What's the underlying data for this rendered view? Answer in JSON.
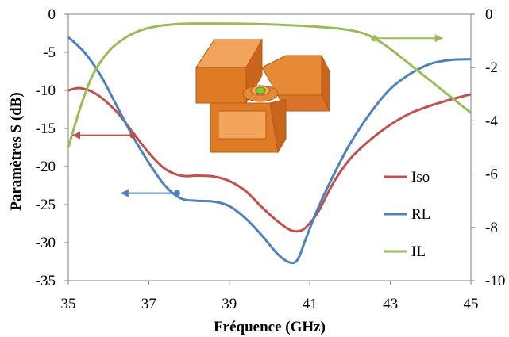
{
  "chart_data": {
    "type": "line",
    "xlabel": "Fréquence (GHz)",
    "ylabel": "Paramètres S (dB)",
    "xlim": [
      35,
      45
    ],
    "xticks": [
      35,
      37,
      39,
      41,
      43,
      45
    ],
    "ylim_left": [
      -35,
      0
    ],
    "yticks_left": [
      0,
      -5,
      -10,
      -15,
      -20,
      -25,
      -30,
      -35
    ],
    "ylim_right": [
      -10,
      0
    ],
    "yticks_right": [
      0,
      -2,
      -4,
      -6,
      -8,
      -10
    ],
    "grid": false,
    "legend_position": "right",
    "series": [
      {
        "name": "Iso",
        "axis": "left",
        "color": "#c0504d",
        "x": [
          35,
          35.3,
          35.7,
          36.2,
          36.6,
          37.0,
          37.4,
          37.8,
          38.2,
          38.6,
          39.0,
          39.4,
          39.8,
          40.2,
          40.5,
          40.7,
          40.9,
          41.2,
          41.6,
          42.0,
          42.5,
          43.0,
          43.5,
          44.0,
          44.5,
          45.0
        ],
        "y": [
          -10.0,
          -9.7,
          -10.5,
          -12.8,
          -15.5,
          -18.2,
          -20.3,
          -21.2,
          -21.2,
          -21.3,
          -21.9,
          -23.2,
          -25.3,
          -27.2,
          -28.3,
          -28.5,
          -28.0,
          -26.0,
          -22.0,
          -19.0,
          -16.5,
          -14.5,
          -13.0,
          -12.0,
          -11.2,
          -10.5
        ]
      },
      {
        "name": "RL",
        "axis": "left",
        "color": "#4f81bd",
        "x": [
          35,
          35.4,
          35.8,
          36.2,
          36.6,
          37.0,
          37.4,
          37.8,
          38.2,
          38.6,
          39.0,
          39.4,
          39.8,
          40.2,
          40.5,
          40.7,
          40.9,
          41.2,
          41.6,
          42.0,
          42.5,
          43.0,
          43.5,
          44.0,
          44.5,
          45.0
        ],
        "y": [
          -3.0,
          -5.0,
          -8.0,
          -12.0,
          -16.0,
          -19.5,
          -22.5,
          -24.2,
          -24.5,
          -24.6,
          -25.2,
          -26.8,
          -29.0,
          -31.5,
          -32.6,
          -32.2,
          -29.5,
          -25.5,
          -21.0,
          -17.0,
          -13.0,
          -9.8,
          -7.8,
          -6.5,
          -6.0,
          -5.9
        ]
      },
      {
        "name": "IL",
        "axis": "right",
        "color": "#9bbb59",
        "x": [
          35,
          35.3,
          35.6,
          36.0,
          36.4,
          36.8,
          37.2,
          37.6,
          38.0,
          39.0,
          40.0,
          41.0,
          41.8,
          42.3,
          42.6,
          43.0,
          43.5,
          44.0,
          44.5,
          45.0
        ],
        "y": [
          -5.0,
          -3.5,
          -2.3,
          -1.4,
          -0.9,
          -0.6,
          -0.45,
          -0.38,
          -0.35,
          -0.35,
          -0.38,
          -0.45,
          -0.55,
          -0.7,
          -0.9,
          -1.3,
          -1.9,
          -2.5,
          -3.1,
          -3.7
        ]
      }
    ],
    "legend": [
      "Iso",
      "RL",
      "IL"
    ]
  }
}
